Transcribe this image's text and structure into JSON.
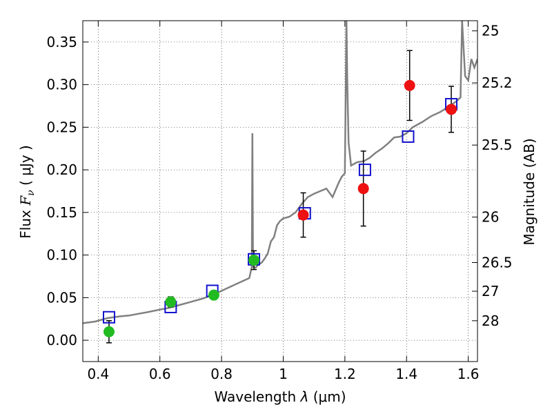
{
  "chart_data": {
    "type": "scatter",
    "xlabel_prefix": "Wavelength",
    "xlabel_symbol": "λ",
    "xlabel_unit": "(μm)",
    "ylabel_prefix": "Flux",
    "ylabel_symbol": "F",
    "ylabel_subscript": "ν",
    "ylabel_unit": "( μJy )",
    "y2label": "Magnitude (AB)",
    "xlim": [
      0.35,
      1.63
    ],
    "ylim": [
      -0.025,
      0.375
    ],
    "grid": true,
    "x_ticks": [
      0.4,
      0.6,
      0.8,
      1.0,
      1.2,
      1.4,
      1.6
    ],
    "x_tick_labels": [
      "0.4",
      "0.6",
      "0.8",
      "1",
      "1.2",
      "1.4",
      "1.6"
    ],
    "y_ticks": [
      0.0,
      0.05,
      0.1,
      0.15,
      0.2,
      0.25,
      0.3,
      0.35
    ],
    "y_tick_labels": [
      "0.00",
      "0.05",
      "0.10",
      "0.15",
      "0.20",
      "0.25",
      "0.30",
      "0.35"
    ],
    "mag_ticks": [
      25,
      25.2,
      25.5,
      26,
      26.5,
      27,
      28
    ],
    "mag_tick_labels": [
      "25",
      "25.2",
      "25.5",
      "26",
      "26.5",
      "27",
      "28"
    ],
    "series": [
      {
        "name": "green-photometry",
        "marker": "circle",
        "color": "#22bb22",
        "points": [
          {
            "x": 0.435,
            "y": 0.01,
            "err": 0.013
          },
          {
            "x": 0.635,
            "y": 0.045,
            "err": 0.006
          },
          {
            "x": 0.775,
            "y": 0.053,
            "err": 0.005
          },
          {
            "x": 0.905,
            "y": 0.094,
            "err": 0.011
          }
        ]
      },
      {
        "name": "red-photometry",
        "marker": "circle",
        "color": "#ee1111",
        "points": [
          {
            "x": 1.065,
            "y": 0.147,
            "err": 0.026
          },
          {
            "x": 1.26,
            "y": 0.178,
            "err": 0.044
          },
          {
            "x": 1.41,
            "y": 0.299,
            "err": 0.041
          },
          {
            "x": 1.545,
            "y": 0.271,
            "err": 0.027
          }
        ]
      },
      {
        "name": "model-photometry",
        "marker": "square",
        "color": "#1111cc",
        "points": [
          {
            "x": 0.435,
            "y": 0.027
          },
          {
            "x": 0.635,
            "y": 0.039
          },
          {
            "x": 0.77,
            "y": 0.058
          },
          {
            "x": 0.905,
            "y": 0.095
          },
          {
            "x": 1.07,
            "y": 0.149
          },
          {
            "x": 1.265,
            "y": 0.2
          },
          {
            "x": 1.405,
            "y": 0.239
          },
          {
            "x": 1.545,
            "y": 0.277
          }
        ]
      }
    ],
    "spectrum": {
      "name": "model-spectrum",
      "color": "#808080",
      "x": [
        0.35,
        0.37,
        0.39,
        0.41,
        0.43,
        0.45,
        0.47,
        0.5,
        0.53,
        0.56,
        0.6,
        0.63,
        0.66,
        0.7,
        0.74,
        0.77,
        0.8,
        0.83,
        0.86,
        0.89,
        0.898,
        0.9,
        0.902,
        0.91,
        0.92,
        0.93,
        0.94,
        0.95,
        0.96,
        0.97,
        0.98,
        0.99,
        1.0,
        1.02,
        1.04,
        1.06,
        1.08,
        1.1,
        1.12,
        1.14,
        1.16,
        1.18,
        1.19,
        1.2,
        1.205,
        1.208,
        1.212,
        1.22,
        1.24,
        1.26,
        1.28,
        1.3,
        1.32,
        1.34,
        1.36,
        1.38,
        1.4,
        1.42,
        1.45,
        1.48,
        1.51,
        1.54,
        1.56,
        1.575,
        1.58,
        1.59,
        1.6,
        1.61,
        1.62,
        1.63
      ],
      "y": [
        0.02,
        0.021,
        0.022,
        0.024,
        0.026,
        0.027,
        0.028,
        0.029,
        0.031,
        0.033,
        0.036,
        0.038,
        0.041,
        0.045,
        0.049,
        0.053,
        0.058,
        0.063,
        0.068,
        0.073,
        0.086,
        0.243,
        0.086,
        0.085,
        0.089,
        0.091,
        0.096,
        0.102,
        0.116,
        0.121,
        0.135,
        0.14,
        0.143,
        0.145,
        0.15,
        0.16,
        0.168,
        0.172,
        0.175,
        0.178,
        0.168,
        0.185,
        0.192,
        0.196,
        0.375,
        0.3,
        0.232,
        0.205,
        0.209,
        0.21,
        0.214,
        0.22,
        0.225,
        0.231,
        0.238,
        0.239,
        0.243,
        0.25,
        0.256,
        0.263,
        0.268,
        0.275,
        0.28,
        0.285,
        0.375,
        0.31,
        0.305,
        0.33,
        0.32,
        0.33
      ]
    }
  }
}
